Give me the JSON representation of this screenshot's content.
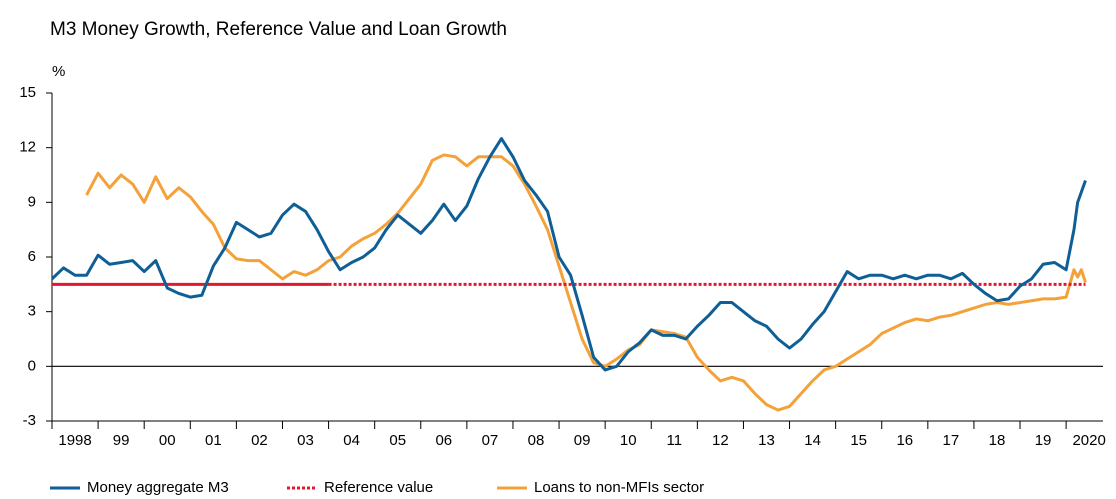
{
  "chart_data": {
    "type": "line",
    "title": "M3 Money Growth, Reference Value and Loan Growth",
    "y_label": "%",
    "xlim": [
      1998,
      2020.8
    ],
    "ylim": [
      -3,
      15
    ],
    "yticks": [
      -3,
      0,
      3,
      6,
      9,
      12,
      15
    ],
    "xticks": [
      {
        "value": 1998.5,
        "label": "1998"
      },
      {
        "value": 1999.5,
        "label": "99"
      },
      {
        "value": 2000.5,
        "label": "00"
      },
      {
        "value": 2001.5,
        "label": "01"
      },
      {
        "value": 2002.5,
        "label": "02"
      },
      {
        "value": 2003.5,
        "label": "03"
      },
      {
        "value": 2004.5,
        "label": "04"
      },
      {
        "value": 2005.5,
        "label": "05"
      },
      {
        "value": 2006.5,
        "label": "06"
      },
      {
        "value": 2007.5,
        "label": "07"
      },
      {
        "value": 2008.5,
        "label": "08"
      },
      {
        "value": 2009.5,
        "label": "09"
      },
      {
        "value": 2010.5,
        "label": "10"
      },
      {
        "value": 2011.5,
        "label": "11"
      },
      {
        "value": 2012.5,
        "label": "12"
      },
      {
        "value": 2013.5,
        "label": "13"
      },
      {
        "value": 2014.5,
        "label": "14"
      },
      {
        "value": 2015.5,
        "label": "15"
      },
      {
        "value": 2016.5,
        "label": "16"
      },
      {
        "value": 2017.5,
        "label": "17"
      },
      {
        "value": 2018.5,
        "label": "18"
      },
      {
        "value": 2019.5,
        "label": "19"
      },
      {
        "value": 2020.5,
        "label": "2020"
      }
    ],
    "series": [
      {
        "name": "Money aggregate M3",
        "color": "#0f5f96",
        "x": [
          1998,
          1998.25,
          1998.5,
          1998.75,
          1999,
          1999.25,
          1999.5,
          1999.75,
          2000,
          2000.25,
          2000.5,
          2000.75,
          2001,
          2001.25,
          2001.5,
          2001.75,
          2002,
          2002.25,
          2002.5,
          2002.75,
          2003,
          2003.25,
          2003.5,
          2003.75,
          2004,
          2004.25,
          2004.5,
          2004.75,
          2005,
          2005.25,
          2005.5,
          2005.75,
          2006,
          2006.25,
          2006.5,
          2006.75,
          2007,
          2007.25,
          2007.5,
          2007.75,
          2008,
          2008.25,
          2008.5,
          2008.75,
          2009,
          2009.25,
          2009.5,
          2009.75,
          2010,
          2010.25,
          2010.5,
          2010.75,
          2011,
          2011.25,
          2011.5,
          2011.75,
          2012,
          2012.25,
          2012.5,
          2012.75,
          2013,
          2013.25,
          2013.5,
          2013.75,
          2014,
          2014.25,
          2014.5,
          2014.75,
          2015,
          2015.25,
          2015.5,
          2015.75,
          2016,
          2016.25,
          2016.5,
          2016.75,
          2017,
          2017.25,
          2017.5,
          2017.75,
          2018,
          2018.25,
          2018.5,
          2018.75,
          2019,
          2019.25,
          2019.5,
          2019.75,
          2020,
          2020.17,
          2020.25,
          2020.42
        ],
        "values": [
          4.8,
          5.4,
          5.0,
          5.0,
          6.1,
          5.6,
          5.7,
          5.8,
          5.2,
          5.8,
          4.3,
          4.0,
          3.8,
          3.9,
          5.5,
          6.5,
          7.9,
          7.5,
          7.1,
          7.3,
          8.3,
          8.9,
          8.5,
          7.5,
          6.3,
          5.3,
          5.7,
          6.0,
          6.5,
          7.5,
          8.3,
          7.8,
          7.3,
          8.0,
          8.9,
          8.0,
          8.8,
          10.3,
          11.5,
          12.5,
          11.5,
          10.2,
          9.4,
          8.5,
          6.0,
          5.0,
          2.8,
          0.5,
          -0.2,
          0.0,
          0.8,
          1.3,
          2.0,
          1.7,
          1.7,
          1.5,
          2.2,
          2.8,
          3.5,
          3.5,
          3.0,
          2.5,
          2.2,
          1.5,
          1.0,
          1.5,
          2.3,
          3.0,
          4.1,
          5.2,
          4.8,
          5.0,
          5.0,
          4.8,
          5.0,
          4.8,
          5.0,
          5.0,
          4.8,
          5.1,
          4.5,
          4.0,
          3.6,
          3.7,
          4.4,
          4.8,
          5.6,
          5.7,
          5.3,
          7.5,
          9.0,
          10.2
        ]
      },
      {
        "name": "Reference value",
        "color": "#e3182d",
        "x": [
          1998,
          2004,
          2020.42
        ],
        "values": [
          4.5,
          4.5,
          4.5
        ],
        "segment_styles": [
          "solid",
          "dotted"
        ]
      },
      {
        "name": "Loans to non-MFIs sector",
        "color": "#f4a13a",
        "x": [
          1998.75,
          1999,
          1999.25,
          1999.5,
          1999.75,
          2000,
          2000.25,
          2000.5,
          2000.75,
          2001,
          2001.25,
          2001.5,
          2001.75,
          2002,
          2002.25,
          2002.5,
          2002.75,
          2003,
          2003.25,
          2003.5,
          2003.75,
          2004,
          2004.25,
          2004.5,
          2004.75,
          2005,
          2005.25,
          2005.5,
          2005.75,
          2006,
          2006.25,
          2006.5,
          2006.75,
          2007,
          2007.25,
          2007.5,
          2007.75,
          2008,
          2008.25,
          2008.5,
          2008.75,
          2009,
          2009.25,
          2009.5,
          2009.75,
          2010,
          2010.25,
          2010.5,
          2010.75,
          2011,
          2011.25,
          2011.5,
          2011.75,
          2012,
          2012.25,
          2012.5,
          2012.75,
          2013,
          2013.25,
          2013.5,
          2013.75,
          2014,
          2014.25,
          2014.5,
          2014.75,
          2015,
          2015.25,
          2015.5,
          2015.75,
          2016,
          2016.25,
          2016.5,
          2016.75,
          2017,
          2017.25,
          2017.5,
          2017.75,
          2018,
          2018.25,
          2018.5,
          2018.75,
          2019,
          2019.25,
          2019.5,
          2019.75,
          2020,
          2020.17,
          2020.25,
          2020.33,
          2020.42
        ],
        "values": [
          9.4,
          10.6,
          9.8,
          10.5,
          10.0,
          9.0,
          10.4,
          9.2,
          9.8,
          9.3,
          8.5,
          7.8,
          6.5,
          5.9,
          5.8,
          5.8,
          5.3,
          4.8,
          5.2,
          5.0,
          5.3,
          5.8,
          6.0,
          6.6,
          7.0,
          7.3,
          7.8,
          8.4,
          9.2,
          10.0,
          11.3,
          11.6,
          11.5,
          11.0,
          11.5,
          11.5,
          11.5,
          11.0,
          10.0,
          8.8,
          7.5,
          5.5,
          3.5,
          1.5,
          0.2,
          0.0,
          0.4,
          0.9,
          1.2,
          2.0,
          1.9,
          1.8,
          1.6,
          0.5,
          -0.2,
          -0.8,
          -0.6,
          -0.8,
          -1.5,
          -2.1,
          -2.4,
          -2.2,
          -1.5,
          -0.8,
          -0.2,
          0.0,
          0.4,
          0.8,
          1.2,
          1.8,
          2.1,
          2.4,
          2.6,
          2.5,
          2.7,
          2.8,
          3.0,
          3.2,
          3.4,
          3.5,
          3.4,
          3.5,
          3.6,
          3.7,
          3.7,
          3.8,
          5.3,
          4.9,
          5.3,
          4.6
        ]
      }
    ]
  }
}
